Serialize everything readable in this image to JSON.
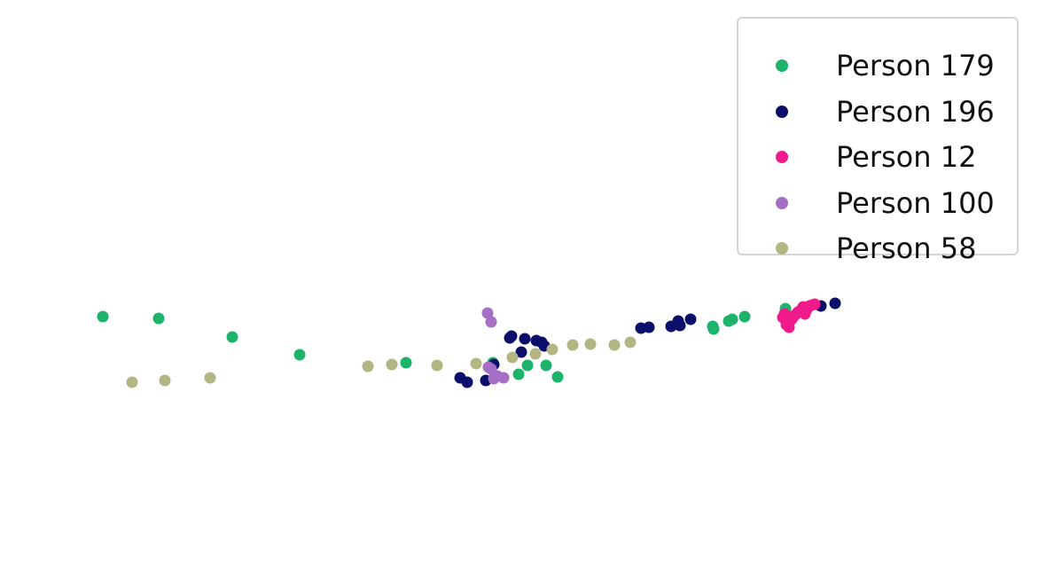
{
  "chart_data": {
    "type": "scatter",
    "title": "",
    "xlabel": "",
    "ylabel": "",
    "axes_visible": false,
    "grid": false,
    "legend_placement": "top-right",
    "xlim": [
      0,
      1172
    ],
    "ylim": [
      -663,
      0
    ],
    "series": [
      {
        "name": "Person 179",
        "color": "#1db36b",
        "points": [
          [
            116,
            -357
          ],
          [
            179,
            -359
          ],
          [
            262,
            -380
          ],
          [
            338,
            -400
          ],
          [
            458,
            -409
          ],
          [
            556,
            -409
          ],
          [
            585,
            -422
          ],
          [
            595,
            -412
          ],
          [
            616,
            -412
          ],
          [
            629,
            -425
          ],
          [
            804,
            -368
          ],
          [
            805,
            -371
          ],
          [
            822,
            -362
          ],
          [
            826,
            -360
          ],
          [
            840,
            -357
          ],
          [
            886,
            -348
          ]
        ]
      },
      {
        "name": "Person 196",
        "color": "#0b0f6b",
        "points": [
          [
            519,
            -426
          ],
          [
            527,
            -431
          ],
          [
            548,
            -429
          ],
          [
            557,
            -411
          ],
          [
            575,
            -381
          ],
          [
            577,
            -379
          ],
          [
            588,
            -397
          ],
          [
            592,
            -382
          ],
          [
            605,
            -384
          ],
          [
            611,
            -386
          ],
          [
            614,
            -390
          ],
          [
            723,
            -370
          ],
          [
            732,
            -369
          ],
          [
            757,
            -368
          ],
          [
            765,
            -362
          ],
          [
            767,
            -367
          ],
          [
            779,
            -360
          ],
          [
            926,
            -345
          ],
          [
            942,
            -342
          ]
        ]
      },
      {
        "name": "Person 12",
        "color": "#f01a8c",
        "points": [
          [
            883,
            -358
          ],
          [
            887,
            -366
          ],
          [
            890,
            -369
          ],
          [
            893,
            -360
          ],
          [
            897,
            -355
          ],
          [
            900,
            -352
          ],
          [
            903,
            -350
          ],
          [
            906,
            -346
          ],
          [
            908,
            -354
          ],
          [
            910,
            -349
          ],
          [
            913,
            -345
          ],
          [
            916,
            -344
          ],
          [
            919,
            -343
          ],
          [
            885,
            -354
          ],
          [
            895,
            -357
          ]
        ]
      },
      {
        "name": "Person 100",
        "color": "#a46fc4",
        "points": [
          [
            550,
            -353
          ],
          [
            554,
            -363
          ],
          [
            551,
            -414
          ],
          [
            554,
            -416
          ],
          [
            557,
            -427
          ],
          [
            561,
            -424
          ],
          [
            568,
            -426
          ]
        ]
      },
      {
        "name": "Person 58",
        "color": "#b3b683",
        "points": [
          [
            149,
            -431
          ],
          [
            186,
            -429
          ],
          [
            237,
            -426
          ],
          [
            415,
            -413
          ],
          [
            442,
            -411
          ],
          [
            493,
            -412
          ],
          [
            537,
            -410
          ],
          [
            578,
            -403
          ],
          [
            604,
            -399
          ],
          [
            623,
            -394
          ],
          [
            646,
            -389
          ],
          [
            666,
            -388
          ],
          [
            693,
            -389
          ],
          [
            711,
            -386
          ]
        ]
      }
    ]
  }
}
